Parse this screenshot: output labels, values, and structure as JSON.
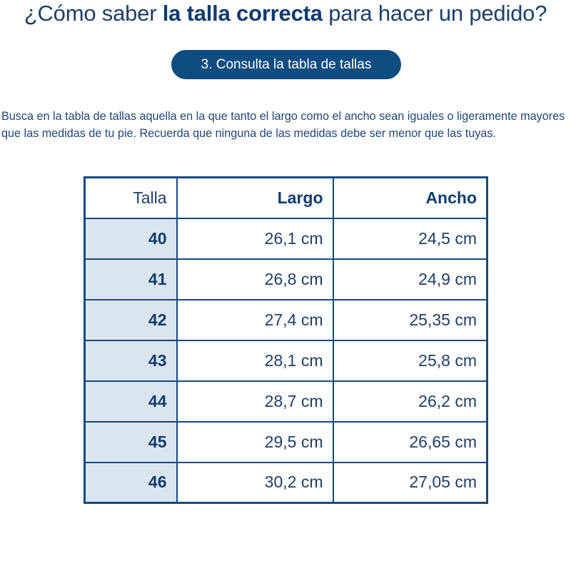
{
  "title": {
    "prefix": "¿Cómo saber ",
    "bold": "la talla correcta",
    "suffix": " para hacer un pedido?"
  },
  "step_label": "3. Consulta la tabla de tallas",
  "instructions": "Busca en la tabla de tallas aquella en la que tanto el largo como el ancho sean iguales o ligeramente mayores que las medidas de tu pie. Recuerda que ninguna de las medidas debe ser menor que las tuyas.",
  "table": {
    "headers": [
      "Talla",
      "Largo",
      "Ancho"
    ],
    "rows": [
      {
        "size": "40",
        "length": "26,1 cm",
        "width": "24,5 cm"
      },
      {
        "size": "41",
        "length": "26,8 cm",
        "width": "24,9 cm"
      },
      {
        "size": "42",
        "length": "27,4 cm",
        "width": "25,35 cm"
      },
      {
        "size": "43",
        "length": "28,1 cm",
        "width": "25,8 cm"
      },
      {
        "size": "44",
        "length": "28,7 cm",
        "width": "26,2 cm"
      },
      {
        "size": "45",
        "length": "29,5 cm",
        "width": "26,65 cm"
      },
      {
        "size": "46",
        "length": "30,2 cm",
        "width": "27,05 cm"
      }
    ]
  },
  "colors": {
    "accent": "#0f4c81",
    "text": "#1d3f6b",
    "size_column_bg": "#dbe5f0"
  }
}
